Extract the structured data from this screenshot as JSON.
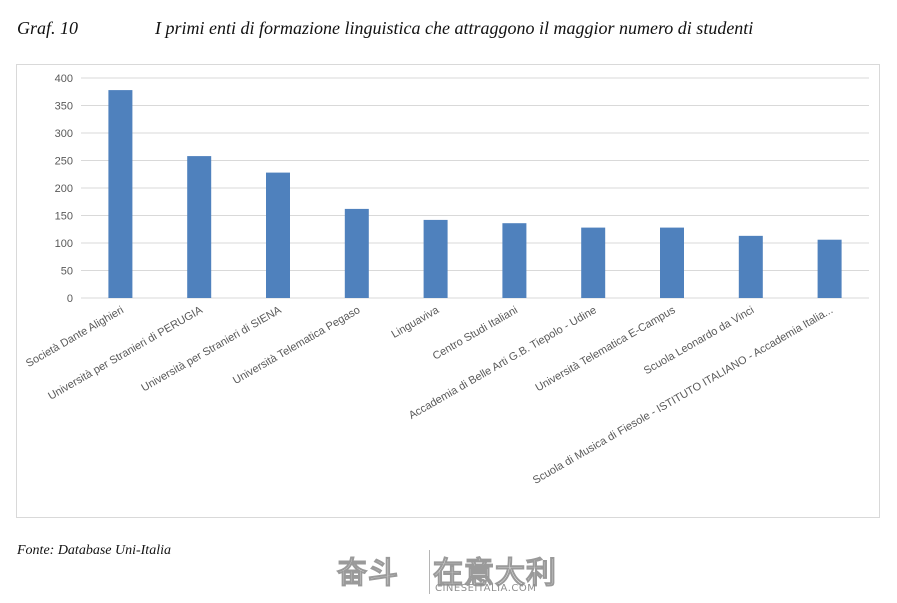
{
  "header": {
    "graf_label": "Graf. 10",
    "title": "I primi enti di formazione linguistica che attraggono il maggior numero di studenti"
  },
  "source": "Fonte: Database Uni-Italia",
  "watermark": {
    "left_text": "奋斗",
    "right_text": "在意大利",
    "url": "CINESEITALIA.COM"
  },
  "colors": {
    "bar": "#4f81bd",
    "grid": "#d9d9d9",
    "tick_text": "#595959"
  },
  "chart_data": {
    "type": "bar",
    "title": "",
    "xlabel": "",
    "ylabel": "",
    "ylim": [
      0,
      400
    ],
    "yticks": [
      0,
      50,
      100,
      150,
      200,
      250,
      300,
      350,
      400
    ],
    "grid": true,
    "categories": [
      "Società Dante Alighieri",
      "Università per Stranieri di PERUGIA",
      "Università per Stranieri di SIENA",
      "Università Telematica Pegaso",
      "Linguaviva",
      "Centro Studi Italiani",
      "Accademia di Belle Arti G.B. Tiepolo - Udine",
      "Università Telematica E-Campus",
      "Scuola Leonardo da Vinci",
      "Scuola di Musica di Fiesole - ISTITUTO ITALIANO - Accademia Italia..."
    ],
    "values": [
      378,
      258,
      228,
      162,
      142,
      136,
      128,
      128,
      113,
      106
    ]
  }
}
